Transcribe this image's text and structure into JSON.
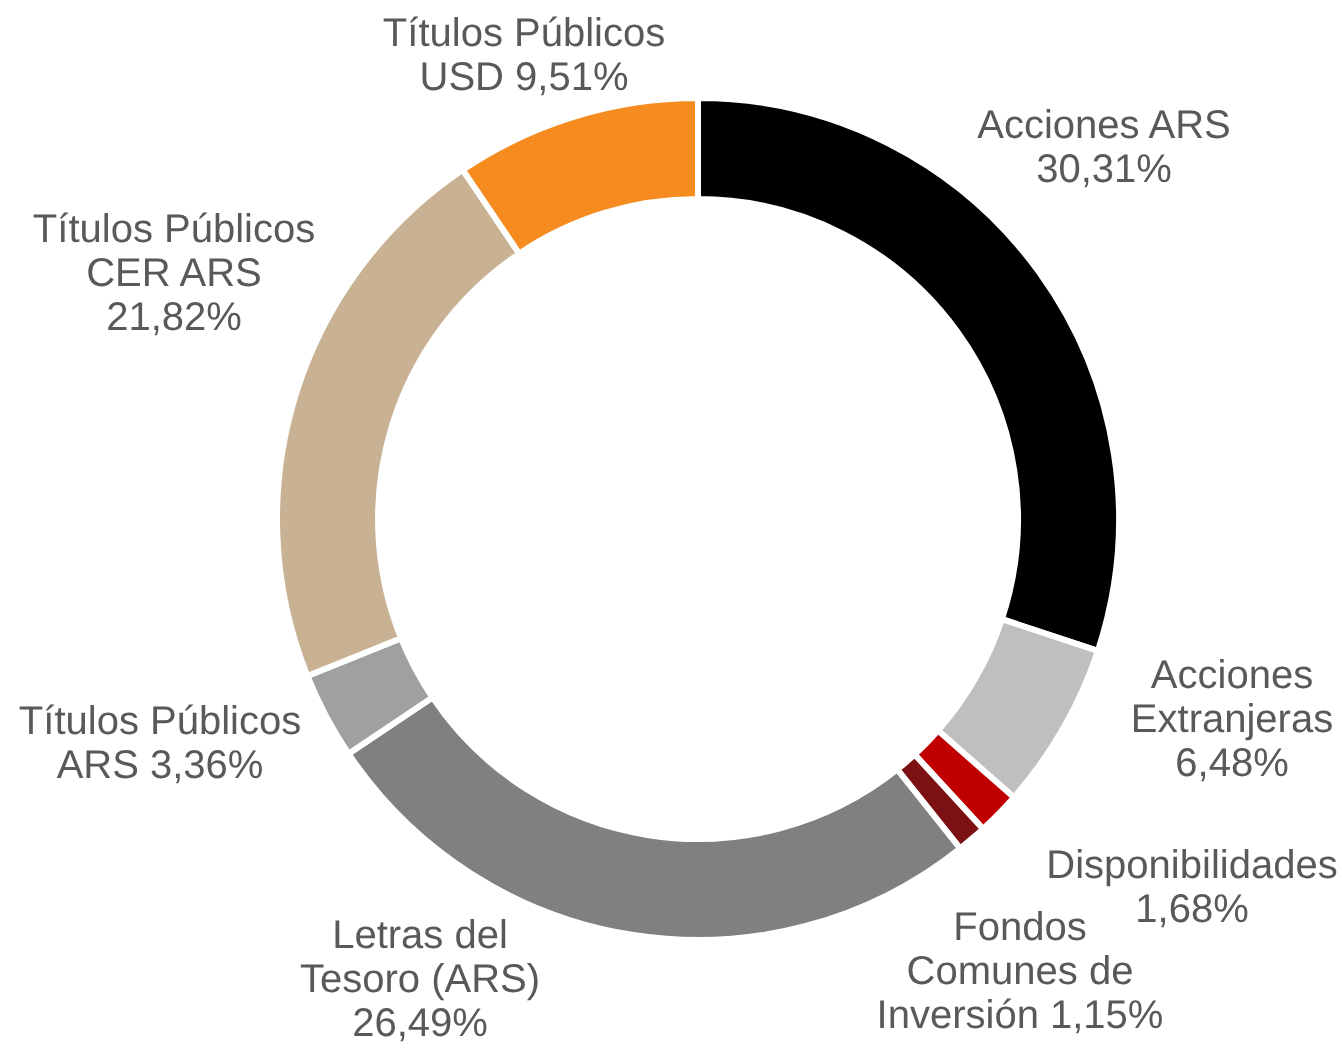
{
  "chart_data": {
    "type": "donut",
    "categories": [
      "Acciones ARS",
      "Acciones Extranjeras",
      "Disponibilidades",
      "Fondos Comunes de Inversión",
      "Letras del Tesoro (ARS)",
      "Títulos Públicos ARS",
      "Títulos Públicos CER ARS",
      "Títulos Públicos USD"
    ],
    "values": [
      30.31,
      6.48,
      1.68,
      1.15,
      26.49,
      3.36,
      21.82,
      9.51
    ],
    "colors": [
      "#000000",
      "#bfbfbf",
      "#c00000",
      "#7b1113",
      "#808080",
      "#a0a0a0",
      "#c9b293",
      "#f68b1f"
    ],
    "value_labels": [
      "30,31%",
      "6,48%",
      "1,68%",
      "1,15%",
      "26,49%",
      "3,36%",
      "21,82%",
      "9,51%"
    ]
  }
}
